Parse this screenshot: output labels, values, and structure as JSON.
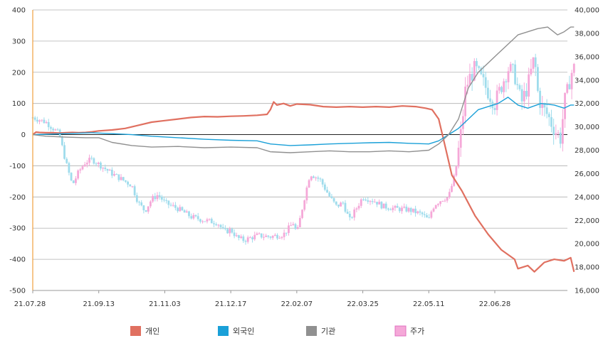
{
  "chart_data": {
    "type": "line",
    "x_ticks": [
      "21.07.28",
      "21.09.13",
      "21.11.03",
      "21.12.17",
      "22.02.07",
      "22.03.25",
      "22.05.11",
      "22.06.28"
    ],
    "y_left": {
      "min": -500,
      "max": 400,
      "ticks": [
        400,
        300,
        200,
        100,
        0,
        -100,
        -200,
        -300,
        -400,
        -500
      ]
    },
    "y_right": {
      "min": 16000,
      "max": 40000,
      "ticks": [
        "40,000",
        "38,000",
        "36,000",
        "34,000",
        "32,000",
        "30,000",
        "28,000",
        "26,000",
        "24,000",
        "22,000",
        "20,000",
        "18,000",
        "16,000"
      ]
    },
    "grid": true,
    "legend_position": "bottom",
    "series": [
      {
        "name": "개인",
        "color": "#e07060",
        "axis": "left",
        "kind": "line",
        "points": [
          [
            0,
            0
          ],
          [
            0.05,
            8
          ],
          [
            0.1,
            7
          ],
          [
            0.2,
            6
          ],
          [
            0.3,
            6
          ],
          [
            0.4,
            5
          ],
          [
            0.5,
            6
          ],
          [
            0.6,
            7
          ],
          [
            0.7,
            6
          ],
          [
            0.8,
            7
          ],
          [
            0.9,
            9
          ],
          [
            1.0,
            12
          ],
          [
            1.2,
            15
          ],
          [
            1.4,
            20
          ],
          [
            1.6,
            30
          ],
          [
            1.8,
            40
          ],
          [
            2.0,
            45
          ],
          [
            2.2,
            50
          ],
          [
            2.4,
            55
          ],
          [
            2.6,
            58
          ],
          [
            2.8,
            57
          ],
          [
            3.0,
            59
          ],
          [
            3.2,
            60
          ],
          [
            3.4,
            62
          ],
          [
            3.55,
            65
          ],
          [
            3.6,
            80
          ],
          [
            3.65,
            105
          ],
          [
            3.7,
            95
          ],
          [
            3.8,
            100
          ],
          [
            3.9,
            92
          ],
          [
            4.0,
            98
          ],
          [
            4.2,
            96
          ],
          [
            4.4,
            90
          ],
          [
            4.6,
            88
          ],
          [
            4.8,
            90
          ],
          [
            5.0,
            88
          ],
          [
            5.2,
            90
          ],
          [
            5.4,
            88
          ],
          [
            5.6,
            92
          ],
          [
            5.8,
            90
          ],
          [
            5.95,
            85
          ],
          [
            6.05,
            80
          ],
          [
            6.15,
            50
          ],
          [
            6.25,
            -40
          ],
          [
            6.35,
            -130
          ],
          [
            6.5,
            -180
          ],
          [
            6.7,
            -260
          ],
          [
            6.9,
            -320
          ],
          [
            7.1,
            -370
          ],
          [
            7.3,
            -400
          ],
          [
            7.35,
            -430
          ],
          [
            7.5,
            -420
          ],
          [
            7.6,
            -440
          ],
          [
            7.75,
            -410
          ],
          [
            7.9,
            -400
          ],
          [
            8.05,
            -405
          ],
          [
            8.15,
            -395
          ],
          [
            8.2,
            -440
          ]
        ]
      },
      {
        "name": "외국인",
        "color": "#1aa0d8",
        "axis": "left",
        "kind": "line",
        "points": [
          [
            0,
            0
          ],
          [
            0.3,
            2
          ],
          [
            0.6,
            4
          ],
          [
            0.9,
            6
          ],
          [
            1.2,
            3
          ],
          [
            1.5,
            0
          ],
          [
            1.8,
            -5
          ],
          [
            2.2,
            -10
          ],
          [
            2.6,
            -15
          ],
          [
            3.0,
            -18
          ],
          [
            3.4,
            -20
          ],
          [
            3.6,
            -30
          ],
          [
            3.9,
            -35
          ],
          [
            4.2,
            -33
          ],
          [
            4.5,
            -30
          ],
          [
            4.8,
            -28
          ],
          [
            5.1,
            -26
          ],
          [
            5.4,
            -25
          ],
          [
            5.7,
            -28
          ],
          [
            6.0,
            -30
          ],
          [
            6.15,
            -20
          ],
          [
            6.3,
            0
          ],
          [
            6.45,
            20
          ],
          [
            6.6,
            50
          ],
          [
            6.75,
            80
          ],
          [
            6.9,
            90
          ],
          [
            7.05,
            100
          ],
          [
            7.2,
            120
          ],
          [
            7.35,
            95
          ],
          [
            7.5,
            85
          ],
          [
            7.7,
            100
          ],
          [
            7.9,
            95
          ],
          [
            8.05,
            85
          ],
          [
            8.15,
            95
          ],
          [
            8.2,
            95
          ]
        ]
      },
      {
        "name": "기관",
        "color": "#909090",
        "axis": "left",
        "kind": "line",
        "points": [
          [
            0,
            0
          ],
          [
            0.2,
            -5
          ],
          [
            0.5,
            -8
          ],
          [
            0.8,
            -10
          ],
          [
            1.0,
            -10
          ],
          [
            1.2,
            -25
          ],
          [
            1.5,
            -35
          ],
          [
            1.8,
            -40
          ],
          [
            2.2,
            -38
          ],
          [
            2.6,
            -42
          ],
          [
            3.0,
            -40
          ],
          [
            3.4,
            -42
          ],
          [
            3.6,
            -55
          ],
          [
            3.9,
            -58
          ],
          [
            4.2,
            -55
          ],
          [
            4.5,
            -52
          ],
          [
            4.8,
            -55
          ],
          [
            5.1,
            -55
          ],
          [
            5.4,
            -52
          ],
          [
            5.7,
            -55
          ],
          [
            6.0,
            -50
          ],
          [
            6.15,
            -30
          ],
          [
            6.3,
            0
          ],
          [
            6.45,
            50
          ],
          [
            6.6,
            150
          ],
          [
            6.75,
            200
          ],
          [
            6.9,
            230
          ],
          [
            7.05,
            260
          ],
          [
            7.2,
            290
          ],
          [
            7.35,
            320
          ],
          [
            7.5,
            330
          ],
          [
            7.65,
            340
          ],
          [
            7.8,
            345
          ],
          [
            7.95,
            320
          ],
          [
            8.05,
            330
          ],
          [
            8.15,
            345
          ],
          [
            8.2,
            345
          ]
        ]
      },
      {
        "name": "주가",
        "color": "#f5a8d8",
        "axis": "right",
        "kind": "candlestick",
        "points": [
          [
            0.0,
            30800
          ],
          [
            0.2,
            30400
          ],
          [
            0.4,
            29400
          ],
          [
            0.5,
            27000
          ],
          [
            0.6,
            25000
          ],
          [
            0.7,
            26200
          ],
          [
            0.8,
            27000
          ],
          [
            0.9,
            27200
          ],
          [
            1.0,
            26800
          ],
          [
            1.2,
            26000
          ],
          [
            1.5,
            25000
          ],
          [
            1.6,
            23500
          ],
          [
            1.7,
            22800
          ],
          [
            1.8,
            23800
          ],
          [
            1.9,
            24200
          ],
          [
            2.0,
            23500
          ],
          [
            2.2,
            23000
          ],
          [
            2.4,
            22300
          ],
          [
            2.6,
            22000
          ],
          [
            2.8,
            21800
          ],
          [
            2.9,
            21000
          ],
          [
            3.0,
            21200
          ],
          [
            3.1,
            20500
          ],
          [
            3.2,
            20300
          ],
          [
            3.4,
            20700
          ],
          [
            3.6,
            20600
          ],
          [
            3.8,
            20800
          ],
          [
            3.95,
            21800
          ],
          [
            4.0,
            20800
          ],
          [
            4.1,
            23500
          ],
          [
            4.2,
            26000
          ],
          [
            4.35,
            25500
          ],
          [
            4.5,
            24000
          ],
          [
            4.6,
            23200
          ],
          [
            4.7,
            23500
          ],
          [
            4.8,
            22000
          ],
          [
            4.9,
            23000
          ],
          [
            5.0,
            24000
          ],
          [
            5.1,
            23800
          ],
          [
            5.2,
            23600
          ],
          [
            5.3,
            23200
          ],
          [
            5.5,
            23000
          ],
          [
            5.7,
            22900
          ],
          [
            5.9,
            22500
          ],
          [
            6.0,
            22000
          ],
          [
            6.05,
            23000
          ],
          [
            6.1,
            23400
          ],
          [
            6.2,
            23800
          ],
          [
            6.3,
            24000
          ],
          [
            6.4,
            26000
          ],
          [
            6.45,
            28000
          ],
          [
            6.5,
            30000
          ],
          [
            6.55,
            33000
          ],
          [
            6.6,
            34000
          ],
          [
            6.7,
            35000
          ],
          [
            6.8,
            34000
          ],
          [
            6.9,
            33000
          ],
          [
            7.0,
            32000
          ],
          [
            7.1,
            33500
          ],
          [
            7.2,
            35000
          ],
          [
            7.3,
            34500
          ],
          [
            7.4,
            32000
          ],
          [
            7.5,
            33500
          ],
          [
            7.6,
            36000
          ],
          [
            7.65,
            33000
          ],
          [
            7.7,
            31800
          ],
          [
            7.8,
            31000
          ],
          [
            7.9,
            29800
          ],
          [
            8.0,
            29000
          ],
          [
            8.05,
            32000
          ],
          [
            8.1,
            33000
          ],
          [
            8.15,
            34500
          ],
          [
            8.2,
            35000
          ]
        ]
      }
    ]
  }
}
